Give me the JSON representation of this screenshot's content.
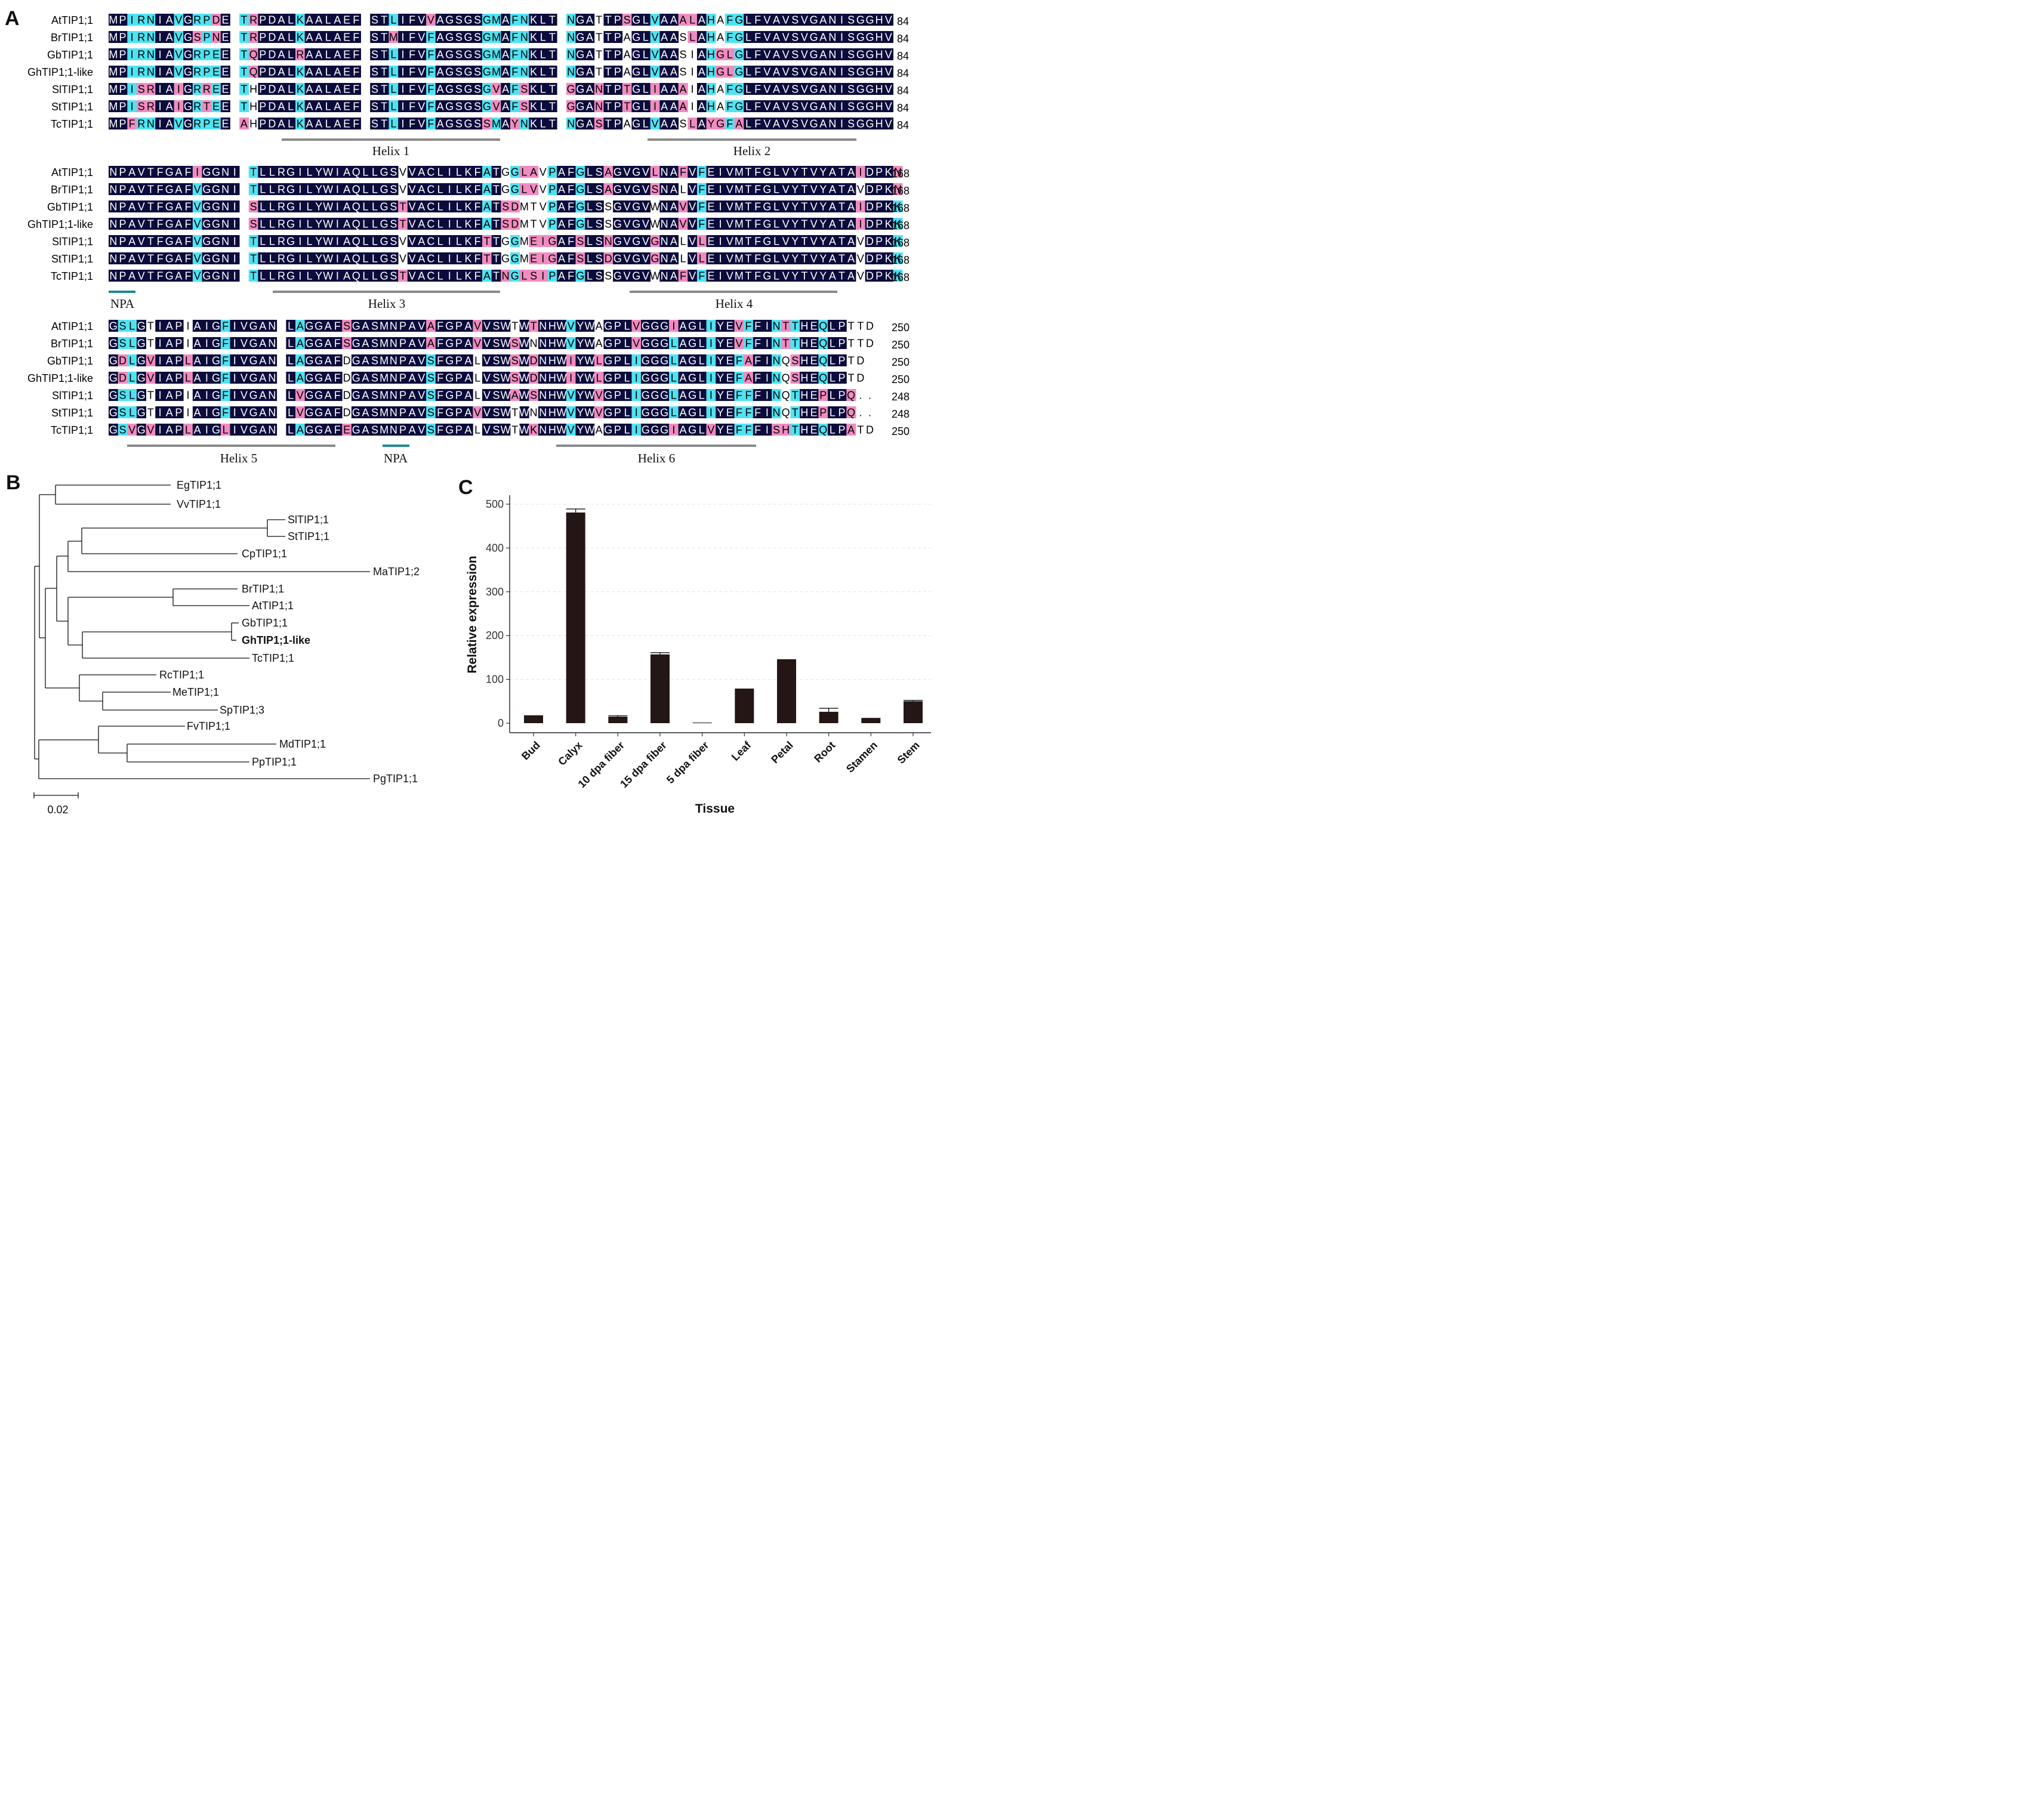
{
  "panels": {
    "a": "A",
    "b": "B",
    "c": "C"
  },
  "alignment": {
    "blocks": [
      {
        "end": "84",
        "rows": [
          {
            "name": "AtTIP1;1",
            "seq": "MPIRNIAVGRPDE TRPDALKAALAEF STLIFVVAGSGSGMAFNKLT NGATTPSGLVAAALAHAFGLFVAVSVGANISGGHV"
          },
          {
            "name": "BrTIP1;1",
            "seq": "MPIRNIAVGSPNE TRPDALKAALAEF STMIFVFAGSGSGMAFNKLT NGATTPAGLVAASLAHAFGLFVAVSVGANISGGHV"
          },
          {
            "name": "GbTIP1;1",
            "seq": "MPIRNIAVGRPEE TQPDALRAALAEF STLIFVFAGSGSGMAFNKLT NGATTPAGLVAASIAHGLGLFVAVSVGANISGGHV"
          },
          {
            "name": "GhTIP1;1-like",
            "seq": "MPIRNIAVGRPEE TQPDALKAALAEF STLIFVFAGSGSGMAFNKLT NGATTPAGLVAASIAHGLGLFVAVSVGANISGGHV"
          },
          {
            "name": "SlTIP1;1",
            "seq": "MPISRIAIGRREE THPDALKAALAEF STLIFVFAGSGSGVAFSKLT GGANTPTGLIAAAIAHAFGLFVAVSVGANISGGHV"
          },
          {
            "name": "StTIP1;1",
            "seq": "MPISRIAIGRTEE THPDALKAALAEF STLIFVFAGSGSGVAFSKLT GGANTPTGLIAAAIAHAFGLFVAVSVGANISGGHV"
          },
          {
            "name": "TcTIP1;1",
            "seq": "MPFRNIAVGRPEE AHPDALKAALAEF STLIFVFAGSGSSMAYNKLT NGASTPAGLVAASLAYGFALFVAVSVGANISGGHV"
          }
        ]
      },
      {
        "end": "168",
        "rows": [
          {
            "name": "AtTIP1;1",
            "seq": "NPAVTFGAFIGGNI TLLRGILYWIAQLLGSVVACLILKFATGGLAVPAFGLSAGVGVLNAFVFEIVMTFGLVYTVYATAIDPKN"
          },
          {
            "name": "BrTIP1;1",
            "seq": "NPAVTFGAFVGGNI TLLRGILYWIAQLLGSVVACLILKFATGGLVVPAFGLSAGVGVSNALVFEIVMTFGLVYTVYATAVDPKN"
          },
          {
            "name": "GbTIP1;1",
            "seq": "NPAVTFGAFVGGNI SLLRGILYWIAQLLGSTVACLILKFATSDMTVPAFGLSSGVGVWNAVVFEIVMTFGLVYTVYATAIDPKK"
          },
          {
            "name": "GhTIP1;1-like",
            "seq": "NPAVTFGAFVGGNI SLLRGILYWIAQLLGSTVACLILKFATSDMTVPAFGLSSGVGVWNAVVFEIVMTFGLVYTVYATAIDPKK"
          },
          {
            "name": "SlTIP1;1",
            "seq": "NPAVTFGAFVGGNI TLLRGILYWIAQLLGSVVACLILKFTTGGMEIGAFSLSNGVGVGNALVLEIVMTFGLVYTVYATAVDPKK"
          },
          {
            "name": "StTIP1;1",
            "seq": "NPAVTFGAFVGGNI TLLRGILYWIAQLLGSVVACLILKFTTGGMEIGAFSLSDGVGVGNALVLEIVMTFGLVYTVYATAVDPKK"
          },
          {
            "name": "TcTIP1;1",
            "seq": "NPAVTFGAFVGGNI TLLRGILYWIAQLLGSTVACLILKFATNGLSIPAFGLSSGVGVWNAFVFEIVMTFGLVYTVYATAVDPKK"
          }
        ]
      },
      {
        "end_values": [
          "250",
          "250",
          "250",
          "250",
          "248",
          "248",
          "250"
        ],
        "rows": [
          {
            "name": "AtTIP1;1",
            "seq": "GSLGTIAPIAIGFIVGAN LAGGAFSGASMNPAVAFGPAVVSWTWTNHWVYWAGPLVGGGIAGLIYEVFFINTTHEQLPTTD"
          },
          {
            "name": "BrTIP1;1",
            "seq": "GSLGTIAPIAIGFIVGAN LAGGAFSGASMNPAVAFGPAVVSWSWNNHWVYWAGPLVGGGLAGLIYEVFFINTTHEQLPTTD"
          },
          {
            "name": "GbTIP1;1",
            "seq": "GDLGVIAPLAIGFIVGAN LAGGAFDGASMNPAVSFGPALVSWSWDNHWIYWLGPLIGGGLAGLIYEFAFINQSHEQLPTD"
          },
          {
            "name": "GhTIP1;1-like",
            "seq": "GDLGVIAPLAIGFIVGAN LAGGAFDGASMNPAVSFGPALVSWSWDNHWIYWLGPLIGGGLAGLIYEFAFINQSHEQLPTD"
          },
          {
            "name": "SlTIP1;1",
            "seq": "GSLGTIAPIAIGFIVGAN LVGGAFDGASMNPAVSFGPALVSWAWSNHWVYWVGPLIGGGLAGLIYEFFFINQTHEPLPQ.."
          },
          {
            "name": "StTIP1;1",
            "seq": "GSLGTIAPIAIGFIVGAN LVGGAFDGASMNPAVSFGPAVVSWTWNNHWVYWVGPLIGGGLAGLIYEFFFINQTHEPLPQ.."
          },
          {
            "name": "TcTIP1;1",
            "seq": "GSVGVIAPLAIGLIVGAN LAGGAFEGASMNPAVSFGPALVSWTWKNHWVYWAGPLIGGGIAGLVYEFFFISHTHEQLPATD"
          }
        ]
      }
    ],
    "features": [
      "Helix 1",
      "Helix 2",
      "NPA",
      "Helix 3",
      "Helix 4",
      "Helix 5",
      "NPA",
      "Helix 6"
    ]
  },
  "tree": {
    "taxa": [
      "EgTIP1;1",
      "VvTIP1;1",
      "SlTIP1;1",
      "StTIP1;1",
      "CpTIP1;1",
      "MaTIP1;2",
      "BrTIP1;1",
      "AtTIP1;1",
      "GbTIP1;1",
      "GhTIP1;1-like",
      "TcTIP1;1",
      "RcTIP1;1",
      "MeTIP1;1",
      "SpTIP1;3",
      "FvTIP1;1",
      "MdTIP1;1",
      "PpTIP1;1",
      "PgTIP1;1"
    ],
    "scale_label": "0.02"
  },
  "chart_data": {
    "type": "bar",
    "categories": [
      "Bud",
      "Calyx",
      "10 dpa fiber",
      "15 dpa fiber",
      "5 dpa fiber",
      "Leaf",
      "Petal",
      "Root",
      "Stamen",
      "Stem"
    ],
    "values": [
      18,
      481,
      15,
      157,
      1,
      79,
      146,
      26,
      12,
      50
    ],
    "errors": [
      0,
      8,
      2,
      4,
      0,
      0,
      0,
      8,
      0,
      2
    ],
    "xlabel": "Tissue",
    "ylabel": "Relative expression",
    "yticks": [
      0,
      100,
      200,
      300,
      400,
      500
    ],
    "ylim": [
      0,
      515
    ],
    "grid": "horizontal dashed",
    "colors": {
      "bar": "#231615",
      "grid": "#e2e2e2"
    }
  },
  "colors": {
    "conserved": "#0b0b3c",
    "similar": "#4fe3f2",
    "variant": "#f08cbf",
    "feature_bar": "#8a8a8a",
    "npa_bar": "#1e8a8a"
  }
}
